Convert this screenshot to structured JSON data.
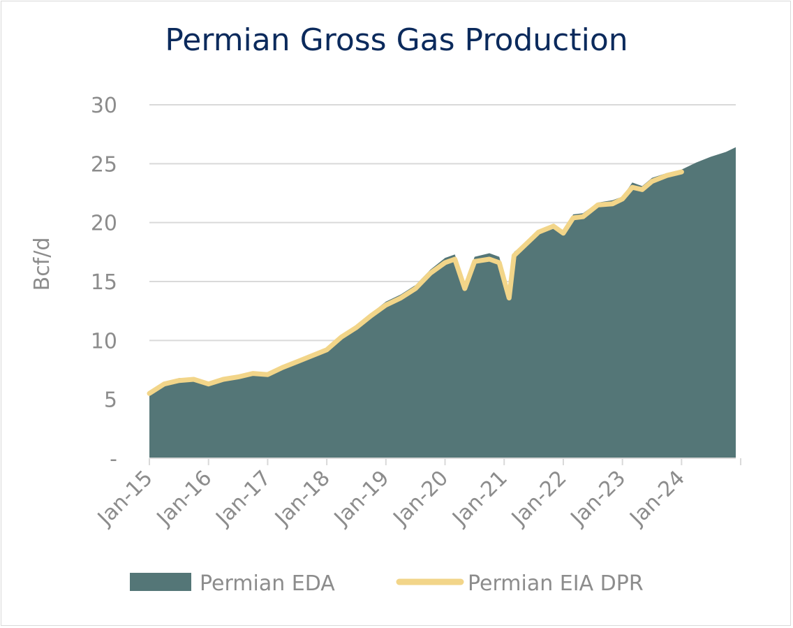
{
  "chart_data": {
    "type": "area",
    "title": "Permian Gross Gas Production",
    "ylabel": "Bcf/d",
    "xlabel": "",
    "ylim": [
      0,
      30
    ],
    "yticks": [
      {
        "value": 0,
        "label": "-"
      },
      {
        "value": 5,
        "label": "5"
      },
      {
        "value": 10,
        "label": "10"
      },
      {
        "value": 15,
        "label": "15"
      },
      {
        "value": 20,
        "label": "20"
      },
      {
        "value": 25,
        "label": "25"
      },
      {
        "value": 30,
        "label": "30"
      }
    ],
    "xrange": [
      "2015-01",
      "2024-12"
    ],
    "xtick_labels": [
      "Jan-15",
      "Jan-16",
      "Jan-17",
      "Jan-18",
      "Jan-19",
      "Jan-20",
      "Jan-21",
      "Jan-22",
      "Jan-23",
      "Jan-24"
    ],
    "grid": true,
    "legend_position": "bottom",
    "series": [
      {
        "name": "Permian EDA",
        "kind": "area",
        "color": "#547677",
        "points": [
          [
            "2015-01",
            5.6
          ],
          [
            "2015-04",
            6.4
          ],
          [
            "2015-07",
            6.8
          ],
          [
            "2015-10",
            6.8
          ],
          [
            "2016-01",
            6.4
          ],
          [
            "2016-04",
            6.8
          ],
          [
            "2016-07",
            7.0
          ],
          [
            "2016-10",
            7.3
          ],
          [
            "2017-01",
            7.2
          ],
          [
            "2017-04",
            7.8
          ],
          [
            "2017-07",
            8.3
          ],
          [
            "2017-10",
            8.8
          ],
          [
            "2018-01",
            9.3
          ],
          [
            "2018-04",
            10.5
          ],
          [
            "2018-07",
            11.3
          ],
          [
            "2018-10",
            12.3
          ],
          [
            "2019-01",
            13.3
          ],
          [
            "2019-04",
            13.9
          ],
          [
            "2019-07",
            14.7
          ],
          [
            "2019-10",
            16.0
          ],
          [
            "2020-01",
            17.0
          ],
          [
            "2020-03",
            17.3
          ],
          [
            "2020-05",
            14.7
          ],
          [
            "2020-07",
            17.1
          ],
          [
            "2020-10",
            17.4
          ],
          [
            "2020-12",
            17.1
          ],
          [
            "2021-02",
            14.0
          ],
          [
            "2021-03",
            17.5
          ],
          [
            "2021-05",
            18.2
          ],
          [
            "2021-08",
            19.3
          ],
          [
            "2021-11",
            19.9
          ],
          [
            "2022-01",
            19.3
          ],
          [
            "2022-03",
            20.7
          ],
          [
            "2022-05",
            20.8
          ],
          [
            "2022-08",
            21.7
          ],
          [
            "2022-11",
            21.9
          ],
          [
            "2023-01",
            22.2
          ],
          [
            "2023-03",
            23.4
          ],
          [
            "2023-05",
            23.1
          ],
          [
            "2023-07",
            23.8
          ],
          [
            "2023-10",
            24.2
          ],
          [
            "2024-01",
            24.5
          ],
          [
            "2024-04",
            25.1
          ],
          [
            "2024-07",
            25.6
          ],
          [
            "2024-10",
            26.0
          ],
          [
            "2024-12",
            26.4
          ]
        ]
      },
      {
        "name": "Permian EIA DPR",
        "kind": "line",
        "color": "#f2d589",
        "points": [
          [
            "2015-01",
            5.5
          ],
          [
            "2015-04",
            6.3
          ],
          [
            "2015-07",
            6.6
          ],
          [
            "2015-10",
            6.7
          ],
          [
            "2016-01",
            6.3
          ],
          [
            "2016-04",
            6.7
          ],
          [
            "2016-07",
            6.9
          ],
          [
            "2016-10",
            7.2
          ],
          [
            "2017-01",
            7.1
          ],
          [
            "2017-04",
            7.7
          ],
          [
            "2017-07",
            8.2
          ],
          [
            "2017-10",
            8.7
          ],
          [
            "2018-01",
            9.2
          ],
          [
            "2018-04",
            10.3
          ],
          [
            "2018-07",
            11.1
          ],
          [
            "2018-10",
            12.1
          ],
          [
            "2019-01",
            13.0
          ],
          [
            "2019-04",
            13.6
          ],
          [
            "2019-07",
            14.4
          ],
          [
            "2019-10",
            15.7
          ],
          [
            "2020-01",
            16.6
          ],
          [
            "2020-03",
            16.9
          ],
          [
            "2020-05",
            14.4
          ],
          [
            "2020-07",
            16.7
          ],
          [
            "2020-10",
            16.9
          ],
          [
            "2020-12",
            16.6
          ],
          [
            "2021-02",
            13.6
          ],
          [
            "2021-03",
            17.2
          ],
          [
            "2021-05",
            18.0
          ],
          [
            "2021-08",
            19.2
          ],
          [
            "2021-11",
            19.7
          ],
          [
            "2022-01",
            19.1
          ],
          [
            "2022-03",
            20.4
          ],
          [
            "2022-05",
            20.5
          ],
          [
            "2022-08",
            21.5
          ],
          [
            "2022-11",
            21.6
          ],
          [
            "2023-01",
            22.0
          ],
          [
            "2023-03",
            23.0
          ],
          [
            "2023-05",
            22.8
          ],
          [
            "2023-07",
            23.5
          ],
          [
            "2023-10",
            24.0
          ],
          [
            "2024-01",
            24.3
          ]
        ]
      }
    ]
  }
}
